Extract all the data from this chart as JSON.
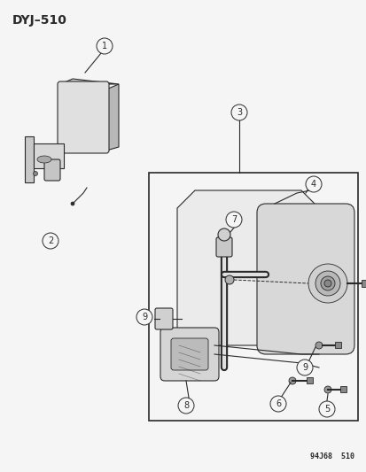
{
  "title": "DYJ–510",
  "footnote": "94J68  510",
  "bg_color": "#f5f5f5",
  "line_color": "#2a2a2a",
  "title_font_size": 10,
  "fig_w": 4.14,
  "fig_h": 5.33,
  "dpi": 100
}
